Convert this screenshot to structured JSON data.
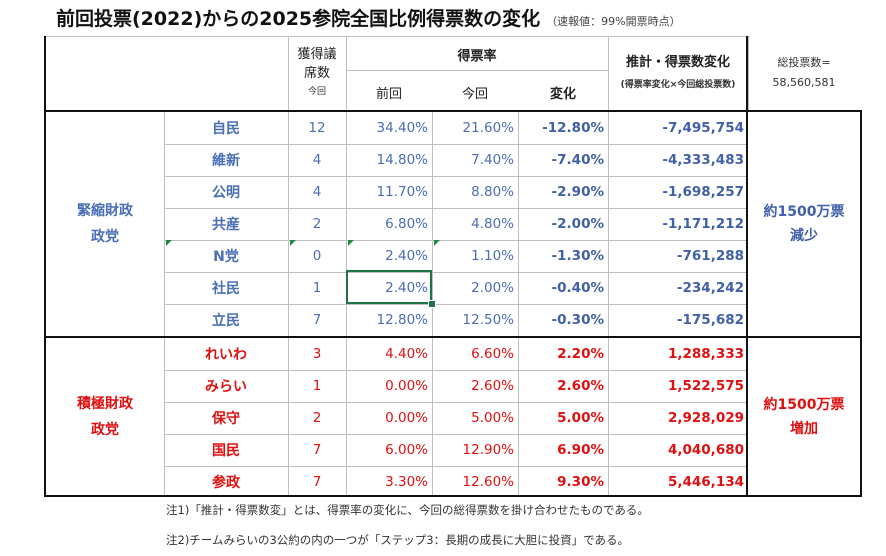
{
  "title": {
    "main": "前回投票(2022)からの2025参院全国比例得票数の変化",
    "sub": "（速報値：99%開票時点）"
  },
  "header": {
    "seats_line1": "獲得議",
    "seats_line2": "席数",
    "seats_line3": "今回",
    "vote_rate": "得票率",
    "previous": "前回",
    "current": "今回",
    "change": "変化",
    "estimate": "推計・得票数変化",
    "estimate_note": "(得票率変化×今回総投票数)",
    "total_label": "総投票数=",
    "total_value": "58,560,581"
  },
  "groups": [
    {
      "name_line1": "緊縮財政",
      "name_line2": "政党",
      "summary_line1": "約1500万票",
      "summary_line2": "減少",
      "rows": [
        {
          "party": "自民",
          "seats": "12",
          "prev": "34.40%",
          "curr": "21.60%",
          "change": "-12.80%",
          "votes": "-7,495,754"
        },
        {
          "party": "維新",
          "seats": "4",
          "prev": "14.80%",
          "curr": "7.40%",
          "change": "-7.40%",
          "votes": "-4,333,483"
        },
        {
          "party": "公明",
          "seats": "4",
          "prev": "11.70%",
          "curr": "8.80%",
          "change": "-2.90%",
          "votes": "-1,698,257"
        },
        {
          "party": "共産",
          "seats": "2",
          "prev": "6.80%",
          "curr": "4.80%",
          "change": "-2.00%",
          "votes": "-1,171,212"
        },
        {
          "party": "N党",
          "seats": "0",
          "prev": "2.40%",
          "curr": "1.10%",
          "change": "-1.30%",
          "votes": "-761,288"
        },
        {
          "party": "社民",
          "seats": "1",
          "prev": "2.40%",
          "curr": "2.00%",
          "change": "-0.40%",
          "votes": "-234,242"
        },
        {
          "party": "立民",
          "seats": "7",
          "prev": "12.80%",
          "curr": "12.50%",
          "change": "-0.30%",
          "votes": "-175,682"
        }
      ]
    },
    {
      "name_line1": "積極財政",
      "name_line2": "政党",
      "summary_line1": "約1500万票",
      "summary_line2": "増加",
      "rows": [
        {
          "party": "れいわ",
          "seats": "3",
          "prev": "4.40%",
          "curr": "6.60%",
          "change": "2.20%",
          "votes": "1,288,333"
        },
        {
          "party": "みらい",
          "seats": "1",
          "prev": "0.00%",
          "curr": "2.60%",
          "change": "2.60%",
          "votes": "1,522,575"
        },
        {
          "party": "保守",
          "seats": "2",
          "prev": "0.00%",
          "curr": "5.00%",
          "change": "5.00%",
          "votes": "2,928,029"
        },
        {
          "party": "国民",
          "seats": "7",
          "prev": "6.00%",
          "curr": "12.90%",
          "change": "6.90%",
          "votes": "4,040,680"
        },
        {
          "party": "参政",
          "seats": "7",
          "prev": "3.30%",
          "curr": "12.60%",
          "change": "9.30%",
          "votes": "5,446,134"
        }
      ]
    }
  ],
  "notes": [
    "注1)「推計・得票数変」とは、得票率の変化に、今回の総得票数を掛け合わせたものである。",
    "注2)チームみらいの3公約の内の一つが「ステップ3：長期の成長に大胆に投資」である。"
  ],
  "colors": {
    "austerity": "#4a6fb5",
    "proactive": "#e01010",
    "selection": "#217346"
  }
}
